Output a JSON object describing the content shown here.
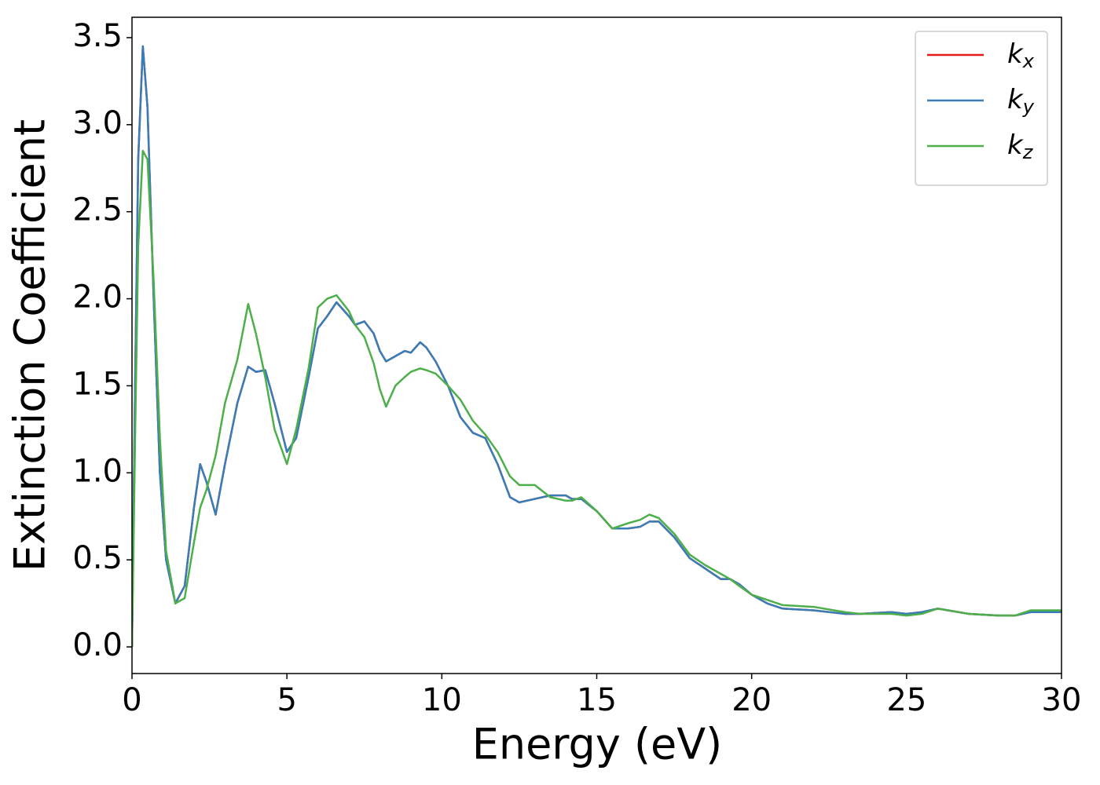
{
  "chart_data": {
    "type": "line",
    "xlabel": "Energy (eV)",
    "ylabel": "Extinction Coefficient",
    "xlim": [
      0,
      30
    ],
    "ylim": [
      -0.153,
      3.617
    ],
    "xticks": [
      0,
      5,
      10,
      15,
      20,
      25,
      30
    ],
    "yticks": [
      {
        "value": 0,
        "label": "0.0"
      },
      0.5,
      {
        "value": 1,
        "label": "1.0"
      },
      1.5,
      {
        "value": 2,
        "label": "2.0"
      },
      2.5,
      {
        "value": 3,
        "label": "3.0"
      },
      3.5
    ],
    "grid": false,
    "legend": "upper right",
    "x": [
      0,
      0.1,
      0.2,
      0.35,
      0.5,
      0.7,
      0.9,
      1.1,
      1.4,
      1.7,
      2.0,
      2.2,
      2.4,
      2.7,
      3.0,
      3.4,
      3.75,
      4.0,
      4.3,
      4.6,
      5.0,
      5.3,
      5.7,
      6.0,
      6.3,
      6.6,
      7.0,
      7.2,
      7.5,
      7.8,
      8.0,
      8.2,
      8.5,
      8.8,
      9.0,
      9.3,
      9.5,
      9.8,
      10.2,
      10.6,
      11.0,
      11.4,
      11.8,
      12.2,
      12.5,
      13.0,
      13.5,
      14.0,
      14.2,
      14.5,
      15,
      15.5,
      16,
      16.4,
      16.7,
      17,
      17.5,
      18,
      18.5,
      19,
      19.3,
      19.6,
      20,
      20.5,
      21,
      22,
      23,
      23.5,
      24.5,
      25,
      25.5,
      26,
      27,
      28,
      28.5,
      29,
      30
    ],
    "series": [
      {
        "name": "kx",
        "color": "#e41a1c",
        "values": [
          0,
          1.5,
          2.8,
          3.45,
          3.1,
          2.0,
          1.0,
          0.5,
          0.25,
          0.35,
          0.8,
          1.05,
          0.95,
          0.76,
          1.05,
          1.4,
          1.61,
          1.58,
          1.59,
          1.4,
          1.12,
          1.2,
          1.55,
          1.83,
          1.9,
          1.98,
          1.9,
          1.85,
          1.87,
          1.8,
          1.7,
          1.64,
          1.67,
          1.7,
          1.69,
          1.75,
          1.72,
          1.64,
          1.5,
          1.32,
          1.23,
          1.2,
          1.05,
          0.86,
          0.83,
          0.85,
          0.87,
          0.87,
          0.85,
          0.85,
          0.78,
          0.68,
          0.68,
          0.69,
          0.72,
          0.72,
          0.63,
          0.51,
          0.45,
          0.39,
          0.39,
          0.36,
          0.3,
          0.25,
          0.22,
          0.21,
          0.19,
          0.19,
          0.2,
          0.19,
          0.2,
          0.22,
          0.19,
          0.18,
          0.18,
          0.2,
          0.2
        ]
      },
      {
        "name": "ky",
        "color": "#377eb8",
        "values": [
          0,
          1.5,
          2.8,
          3.45,
          3.1,
          2.0,
          1.0,
          0.5,
          0.25,
          0.35,
          0.8,
          1.05,
          0.95,
          0.76,
          1.05,
          1.4,
          1.61,
          1.58,
          1.59,
          1.4,
          1.12,
          1.2,
          1.55,
          1.83,
          1.9,
          1.98,
          1.9,
          1.85,
          1.87,
          1.8,
          1.7,
          1.64,
          1.67,
          1.7,
          1.69,
          1.75,
          1.72,
          1.64,
          1.5,
          1.32,
          1.23,
          1.2,
          1.05,
          0.86,
          0.83,
          0.85,
          0.87,
          0.87,
          0.85,
          0.85,
          0.78,
          0.68,
          0.68,
          0.69,
          0.72,
          0.72,
          0.63,
          0.51,
          0.45,
          0.39,
          0.39,
          0.36,
          0.3,
          0.25,
          0.22,
          0.21,
          0.19,
          0.19,
          0.2,
          0.19,
          0.2,
          0.22,
          0.19,
          0.18,
          0.18,
          0.2,
          0.2
        ]
      },
      {
        "name": "kz",
        "color": "#4daf4a",
        "values": [
          0,
          1.2,
          2.3,
          2.85,
          2.8,
          2.1,
          1.2,
          0.55,
          0.25,
          0.28,
          0.6,
          0.8,
          0.9,
          1.1,
          1.4,
          1.65,
          1.97,
          1.8,
          1.55,
          1.25,
          1.05,
          1.25,
          1.6,
          1.95,
          2.0,
          2.02,
          1.93,
          1.85,
          1.78,
          1.63,
          1.48,
          1.38,
          1.5,
          1.55,
          1.58,
          1.6,
          1.59,
          1.57,
          1.5,
          1.42,
          1.3,
          1.22,
          1.12,
          0.98,
          0.93,
          0.93,
          0.86,
          0.84,
          0.84,
          0.86,
          0.78,
          0.68,
          0.71,
          0.73,
          0.76,
          0.74,
          0.65,
          0.53,
          0.47,
          0.42,
          0.39,
          0.35,
          0.3,
          0.27,
          0.24,
          0.23,
          0.2,
          0.19,
          0.19,
          0.18,
          0.19,
          0.22,
          0.19,
          0.18,
          0.18,
          0.21,
          0.21
        ]
      }
    ]
  }
}
